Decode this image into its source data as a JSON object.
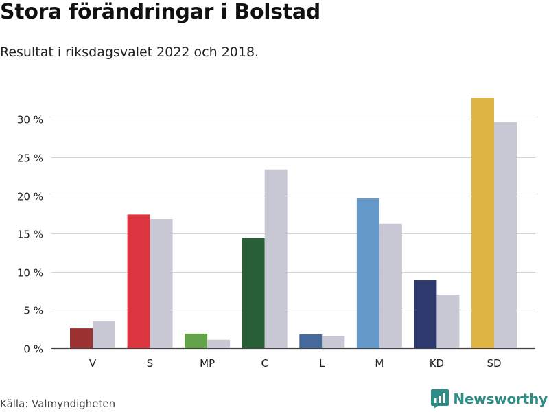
{
  "header": {
    "title": "Stora förändringar i Bolstad",
    "subtitle": "Resultat i riksdagsvalet 2022 och 2018."
  },
  "footer": {
    "source": "Källa: Valmyndigheten",
    "brand": "Newsworthy",
    "brand_icon": "bar-chart-icon",
    "brand_color": "#2e8d87"
  },
  "chart_data": {
    "type": "bar",
    "categories": [
      "V",
      "S",
      "MP",
      "C",
      "L",
      "M",
      "KD",
      "SD"
    ],
    "series": [
      {
        "values": [
          2.6,
          17.5,
          1.9,
          14.4,
          1.8,
          19.6,
          8.9,
          32.8
        ],
        "colors": [
          "#9b3232",
          "#dd3540",
          "#64a24a",
          "#285f37",
          "#44699a",
          "#6499c9",
          "#2e3a6e",
          "#deb445"
        ]
      },
      {
        "values": [
          3.6,
          16.9,
          1.1,
          23.4,
          1.6,
          16.3,
          7.0,
          29.6
        ],
        "color": "#c8c8d4"
      }
    ],
    "yticks": [
      0,
      5,
      10,
      15,
      20,
      25,
      30
    ],
    "ytick_labels": [
      "0 %",
      "5 %",
      "10 %",
      "15 %",
      "20 %",
      "25 %",
      "30 %"
    ],
    "ylim": [
      0,
      33
    ],
    "grid": true,
    "legend": "none"
  }
}
